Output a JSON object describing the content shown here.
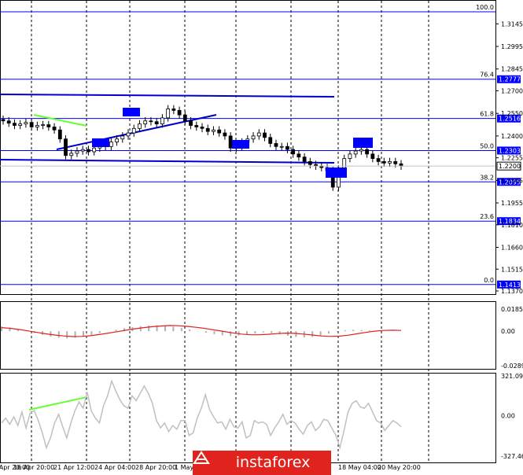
{
  "chart_data": [
    {
      "type": "candlestick",
      "panel": "price",
      "y_ticks": [
        "1.3145",
        "1.2995",
        "1.2845",
        "1.2700",
        "1.2550",
        "1.2400",
        "1.2255",
        "1.2105",
        "1.1955",
        "1.1810",
        "1.1660",
        "1.1515",
        "1.1370"
      ],
      "ylim": [
        1.137,
        1.3225
      ],
      "current_price": "1.2200",
      "fib_levels": [
        {
          "ratio": "100.0",
          "price": "",
          "value": 1.3225
        },
        {
          "ratio": "76.4",
          "price": "1.2777",
          "value": 1.2777
        },
        {
          "ratio": "61.8",
          "price": "1.2516",
          "value": 1.2516
        },
        {
          "ratio": "50.0",
          "price": "1.2303",
          "value": 1.2303
        },
        {
          "ratio": "38.2",
          "price": "1.2095",
          "value": 1.2095
        },
        {
          "ratio": "23.6",
          "price": "1.1834",
          "value": 1.1834
        },
        {
          "ratio": "0.0",
          "price": "1.1413",
          "value": 1.1413
        }
      ],
      "close_series": [
        1.25,
        1.2485,
        1.247,
        1.248,
        1.249,
        1.246,
        1.247,
        1.2475,
        1.246,
        1.244,
        1.238,
        1.227,
        1.2285,
        1.23,
        1.231,
        1.2295,
        1.232,
        1.234,
        1.233,
        1.236,
        1.238,
        1.24,
        1.242,
        1.245,
        1.248,
        1.25,
        1.2495,
        1.248,
        1.252,
        1.258,
        1.257,
        1.254,
        1.25,
        1.247,
        1.246,
        1.245,
        1.243,
        1.244,
        1.242,
        1.24,
        1.232,
        1.233,
        1.236,
        1.238,
        1.24,
        1.242,
        1.239,
        1.235,
        1.233,
        1.233,
        1.231,
        1.228,
        1.226,
        1.223,
        1.221,
        1.22,
        1.219,
        1.217,
        1.206,
        1.218,
        1.225,
        1.228,
        1.23,
        1.231,
        1.228,
        1.225,
        1.223,
        1.222,
        1.223,
        1.2215,
        1.22
      ],
      "note_candles": "approximate"
    },
    {
      "type": "histogram",
      "panel": "macd",
      "y_ticks": [
        "0.01856",
        "0.00",
        "-0.02892"
      ],
      "ylim": [
        -0.02892,
        0.01856
      ],
      "histogram": [
        0.004,
        0.003,
        0.0015,
        0.0,
        -0.0015,
        -0.003,
        -0.0045,
        -0.0055,
        -0.006,
        -0.0055,
        -0.0045,
        -0.003,
        -0.0015,
        0.0,
        0.0012,
        0.0025,
        0.0035,
        0.0042,
        0.0048,
        0.005,
        0.0046,
        0.0038,
        0.0028,
        0.0015,
        0.0002,
        -0.0012,
        -0.0024,
        -0.0034,
        -0.004,
        -0.0036,
        -0.0028,
        -0.0018,
        -0.001,
        -0.0016,
        -0.0026,
        -0.0038,
        -0.0048,
        -0.0052,
        -0.0048,
        -0.0036,
        -0.002,
        -0.0004,
        0.0008,
        0.0012,
        0.001,
        0.0006
      ],
      "signal": [
        0.003,
        0.0024,
        0.0014,
        0.0002,
        -0.001,
        -0.0022,
        -0.0032,
        -0.004,
        -0.0045,
        -0.0044,
        -0.0038,
        -0.0028,
        -0.0016,
        -0.0004,
        0.0008,
        0.002,
        0.003,
        0.0038,
        0.0044,
        0.0048,
        0.0046,
        0.004,
        0.0032,
        0.0022,
        0.001,
        -0.0002,
        -0.0014,
        -0.0024,
        -0.003,
        -0.003,
        -0.0026,
        -0.002,
        -0.0016,
        -0.0018,
        -0.0024,
        -0.0032,
        -0.004,
        -0.0044,
        -0.0042,
        -0.0034,
        -0.0022,
        -0.001,
        0.0,
        0.0006,
        0.0008,
        0.0006
      ]
    },
    {
      "type": "line",
      "panel": "cci",
      "y_ticks": [
        "321.0916",
        "0.00",
        "-327.463"
      ],
      "ylim": [
        -327.463,
        321.0916
      ],
      "values": [
        -60,
        -20,
        -70,
        -10,
        -80,
        30,
        -100,
        20,
        40,
        -40,
        -140,
        -260,
        -180,
        -60,
        10,
        -90,
        -180,
        -60,
        40,
        110,
        60,
        190,
        40,
        -20,
        -60,
        80,
        160,
        280,
        200,
        130,
        80,
        60,
        160,
        120,
        180,
        240,
        180,
        100,
        -40,
        -100,
        -60,
        -130,
        -80,
        -110,
        -40,
        -40,
        -160,
        -140,
        -20,
        60,
        170,
        50,
        -10,
        -60,
        -50,
        -110,
        -30,
        -90,
        -100,
        -50,
        -180,
        -160,
        -40,
        -60,
        -50,
        -70,
        -160,
        -100,
        -50,
        10,
        -70,
        -40,
        -60,
        -110,
        -150,
        -80,
        -50,
        -120,
        -90,
        -30,
        -40,
        -100,
        -160,
        -260,
        -120,
        30,
        100,
        120,
        70,
        60,
        100,
        30,
        -40,
        -60,
        -120,
        -80,
        -40,
        -60,
        -90
      ]
    }
  ],
  "x_ticks": [
    "15 Apr 20:00",
    "16 Apr 20:00",
    "21 Apr 12:00",
    "24 Apr 04:00",
    "28 Apr 20:00",
    "1 May",
    "18 May 04:00",
    "20 May 20:00"
  ],
  "watermark": {
    "brand": "instaforex"
  },
  "colors": {
    "fib_line": "#0000ff",
    "channel": "#0000cd",
    "green_line": "#66ff33",
    "signal": "#e02020",
    "histogram": "#b0b0b0",
    "cci": "#c0c0c0",
    "marker": "#0000ff",
    "logo_bg": "#e0231c"
  }
}
